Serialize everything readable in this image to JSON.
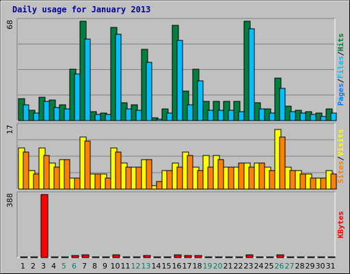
{
  "chart_data": [
    {
      "type": "bar",
      "title": "Daily usage for January 2013",
      "categories": [
        "1",
        "2",
        "3",
        "4",
        "5",
        "6",
        "7",
        "8",
        "9",
        "10",
        "11",
        "12",
        "13",
        "14",
        "15",
        "16",
        "17",
        "18",
        "19",
        "20",
        "21",
        "22",
        "23",
        "24",
        "25",
        "26",
        "27",
        "28",
        "29",
        "30",
        "31"
      ],
      "weekend_days": [
        "5",
        "6",
        "12",
        "13",
        "19",
        "20",
        "26",
        "27"
      ],
      "max_label": "68",
      "ylim": [
        0,
        68
      ],
      "right_labels": [
        "Pages",
        "Files",
        "Hits"
      ],
      "series": [
        {
          "name": "Hits",
          "color": "#008040",
          "values": [
            15,
            7,
            16,
            14,
            11,
            35,
            68,
            6,
            5,
            64,
            12,
            11,
            49,
            2,
            8,
            65,
            20,
            35,
            13,
            13,
            13,
            13,
            68,
            12,
            8,
            29,
            10,
            7,
            6,
            5,
            8
          ]
        },
        {
          "name": "Files",
          "color": "#00c0ff",
          "values": [
            11,
            5,
            13,
            9,
            8,
            32,
            56,
            4,
            4,
            59,
            8,
            7,
            40,
            1,
            5,
            55,
            11,
            27,
            7,
            7,
            7,
            6,
            63,
            8,
            5,
            22,
            6,
            5,
            4,
            3,
            5
          ]
        },
        {
          "name": "Pages",
          "color": "#0080ff",
          "values": [
            0,
            0,
            0,
            0,
            0,
            0,
            0,
            0,
            0,
            0,
            0,
            0,
            0,
            0,
            0,
            0,
            0,
            0,
            0,
            0,
            0,
            0,
            0,
            0,
            0,
            0,
            0,
            0,
            0,
            0,
            0
          ]
        }
      ]
    },
    {
      "type": "bar",
      "max_label": "17",
      "ylim": [
        0,
        17
      ],
      "right_labels": [
        "Sites",
        "Visits"
      ],
      "series": [
        {
          "name": "Visits",
          "color": "#ffff00",
          "values": [
            11,
            5,
            11,
            7,
            8,
            3,
            14,
            4,
            4,
            11,
            7,
            6,
            8,
            1,
            5,
            7,
            10,
            6,
            9,
            9,
            6,
            6,
            7,
            7,
            6,
            16,
            6,
            5,
            4,
            3,
            5
          ]
        },
        {
          "name": "Sites",
          "color": "#ff8000",
          "values": [
            10,
            4,
            9,
            6,
            8,
            3,
            13,
            4,
            3,
            10,
            6,
            6,
            8,
            2,
            5,
            6,
            9,
            5,
            6,
            8,
            6,
            7,
            6,
            7,
            5,
            14,
            5,
            4,
            3,
            3,
            4
          ]
        }
      ]
    },
    {
      "type": "bar",
      "max_label": "388",
      "ylim": [
        0,
        388
      ],
      "right_labels": [
        "KBytes"
      ],
      "series": [
        {
          "name": "KBytes",
          "color": "#ff0000",
          "values": [
            6,
            6,
            388,
            6,
            6,
            12,
            18,
            6,
            6,
            18,
            6,
            6,
            12,
            6,
            6,
            18,
            12,
            12,
            6,
            6,
            6,
            6,
            18,
            6,
            6,
            18,
            6,
            6,
            6,
            6,
            6
          ]
        }
      ]
    }
  ]
}
